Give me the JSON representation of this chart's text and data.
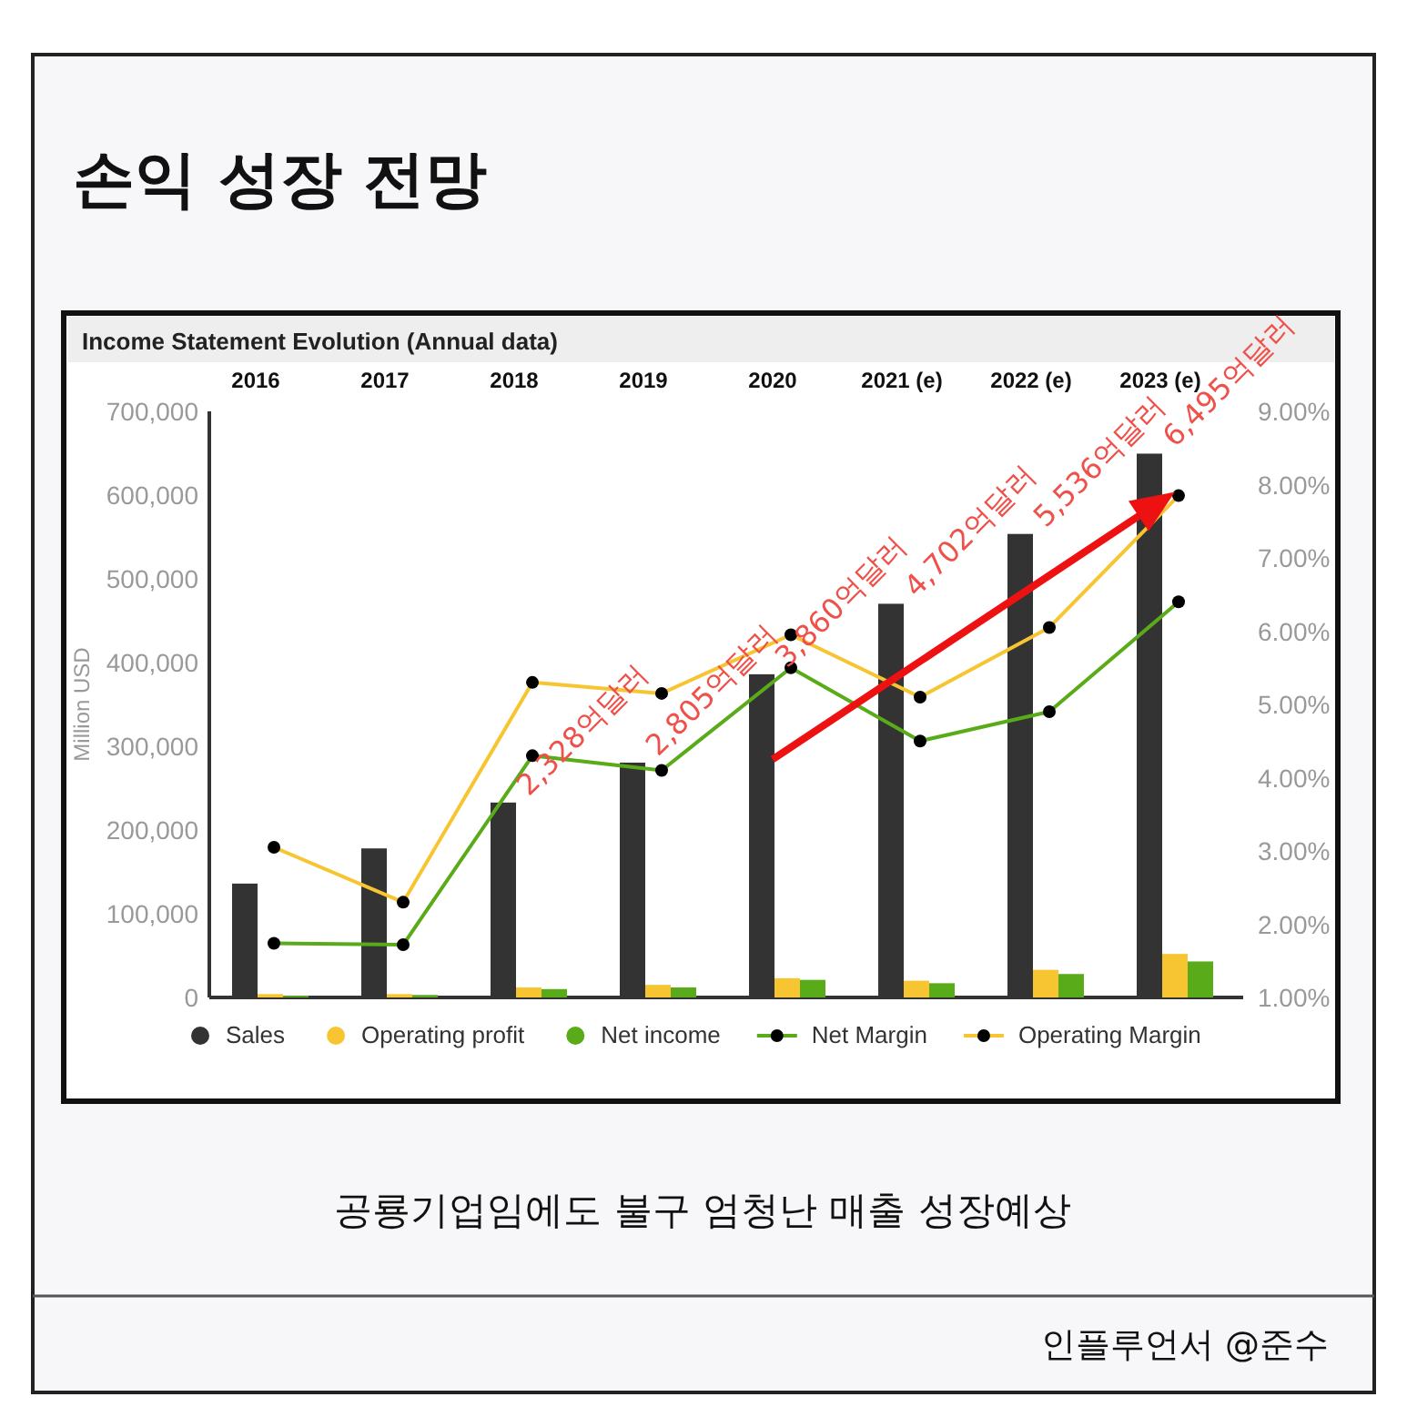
{
  "chart_data": {
    "type": "bar",
    "title": "손익 성장 전망",
    "subtitle": "Income Statement Evolution (Annual data)",
    "ylabel": "Million USD",
    "categories": [
      "2016",
      "2017",
      "2018",
      "2019",
      "2020",
      "2021 (e)",
      "2022 (e)",
      "2023 (e)"
    ],
    "series": [
      {
        "name": "Sales",
        "color": "#333333",
        "values": [
          136000,
          178000,
          232800,
          280500,
          386000,
          470200,
          553600,
          649500
        ]
      },
      {
        "name": "Operating profit",
        "color": "#f7c531",
        "values": [
          4000,
          4000,
          12000,
          15000,
          23000,
          20000,
          33000,
          52000
        ]
      },
      {
        "name": "Net income",
        "color": "#5aab19",
        "values": [
          2000,
          3000,
          10000,
          12000,
          21000,
          17000,
          28000,
          43000
        ]
      },
      {
        "name": "Net Margin",
        "type": "line",
        "axis": "y2",
        "color": "#5aab19",
        "values": [
          1.74,
          1.72,
          4.3,
          4.1,
          5.5,
          4.5,
          4.9,
          6.4
        ]
      },
      {
        "name": "Operating Margin",
        "type": "line",
        "axis": "y2",
        "color": "#f7c531",
        "values": [
          3.05,
          2.3,
          5.3,
          5.15,
          5.95,
          5.1,
          6.05,
          7.85
        ]
      }
    ],
    "ylim": [
      0,
      700000
    ],
    "yticks": [
      {
        "value": 0,
        "label": "0"
      },
      {
        "value": 100000,
        "label": "100,000"
      },
      {
        "value": 200000,
        "label": "200,000"
      },
      {
        "value": 300000,
        "label": "300,000"
      },
      {
        "value": 400000,
        "label": "400,000"
      },
      {
        "value": 500000,
        "label": "500,000"
      },
      {
        "value": 600000,
        "label": "600,000"
      },
      {
        "value": 700000,
        "label": "700,000"
      }
    ],
    "y2lim": [
      1,
      9
    ],
    "y2ticks": [
      {
        "value": 1,
        "label": "1.00%"
      },
      {
        "value": 2,
        "label": "2.00%"
      },
      {
        "value": 3,
        "label": "3.00%"
      },
      {
        "value": 4,
        "label": "4.00%"
      },
      {
        "value": 5,
        "label": "5.00%"
      },
      {
        "value": 6,
        "label": "6.00%"
      },
      {
        "value": 7,
        "label": "7.00%"
      },
      {
        "value": 8,
        "label": "8.00%"
      },
      {
        "value": 9,
        "label": "9.00%"
      }
    ],
    "marker": "circle",
    "legend": "bottom",
    "grid": false,
    "annotations": [
      {
        "text": "2,328억달러",
        "x": "2018",
        "y": 232800
      },
      {
        "text": "2,805억달러",
        "x": "2019",
        "y": 280500
      },
      {
        "text": "3,860억달러",
        "x": "2020",
        "y": 386000
      },
      {
        "text": "4,702억달러",
        "x": "2021 (e)",
        "y": 470200
      },
      {
        "text": "5,536억달러",
        "x": "2022 (e)",
        "y": 553600
      },
      {
        "text": "6,495억달러",
        "x": "2023 (e)",
        "y": 649500
      },
      "공룡기업임에도 불구 엄청난 매출 성장예상",
      "인플루언서 @준수"
    ]
  }
}
